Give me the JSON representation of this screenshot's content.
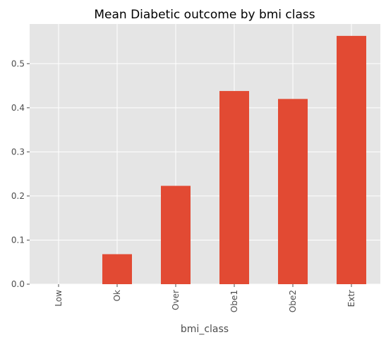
{
  "chart_data": {
    "type": "bar",
    "title": "Mean Diabetic outcome by bmi class",
    "xlabel": "bmi_class",
    "ylabel": "",
    "categories": [
      "Low",
      "Ok",
      "Over",
      "Obe1",
      "Obe2",
      "Extr"
    ],
    "values": [
      0.0,
      0.068,
      0.223,
      0.438,
      0.42,
      0.563
    ],
    "ylim": [
      0,
      0.59
    ],
    "yticks": [
      0.0,
      0.1,
      0.2,
      0.3,
      0.4,
      0.5
    ],
    "ytick_labels": [
      "0.0",
      "0.1",
      "0.2",
      "0.3",
      "0.4",
      "0.5"
    ],
    "grid": true,
    "legend": "none",
    "colors": {
      "bar": "#E24A33",
      "plot_background": "#E5E5E5",
      "grid": "#FFFFFF",
      "text": "#4D4D4D"
    }
  }
}
